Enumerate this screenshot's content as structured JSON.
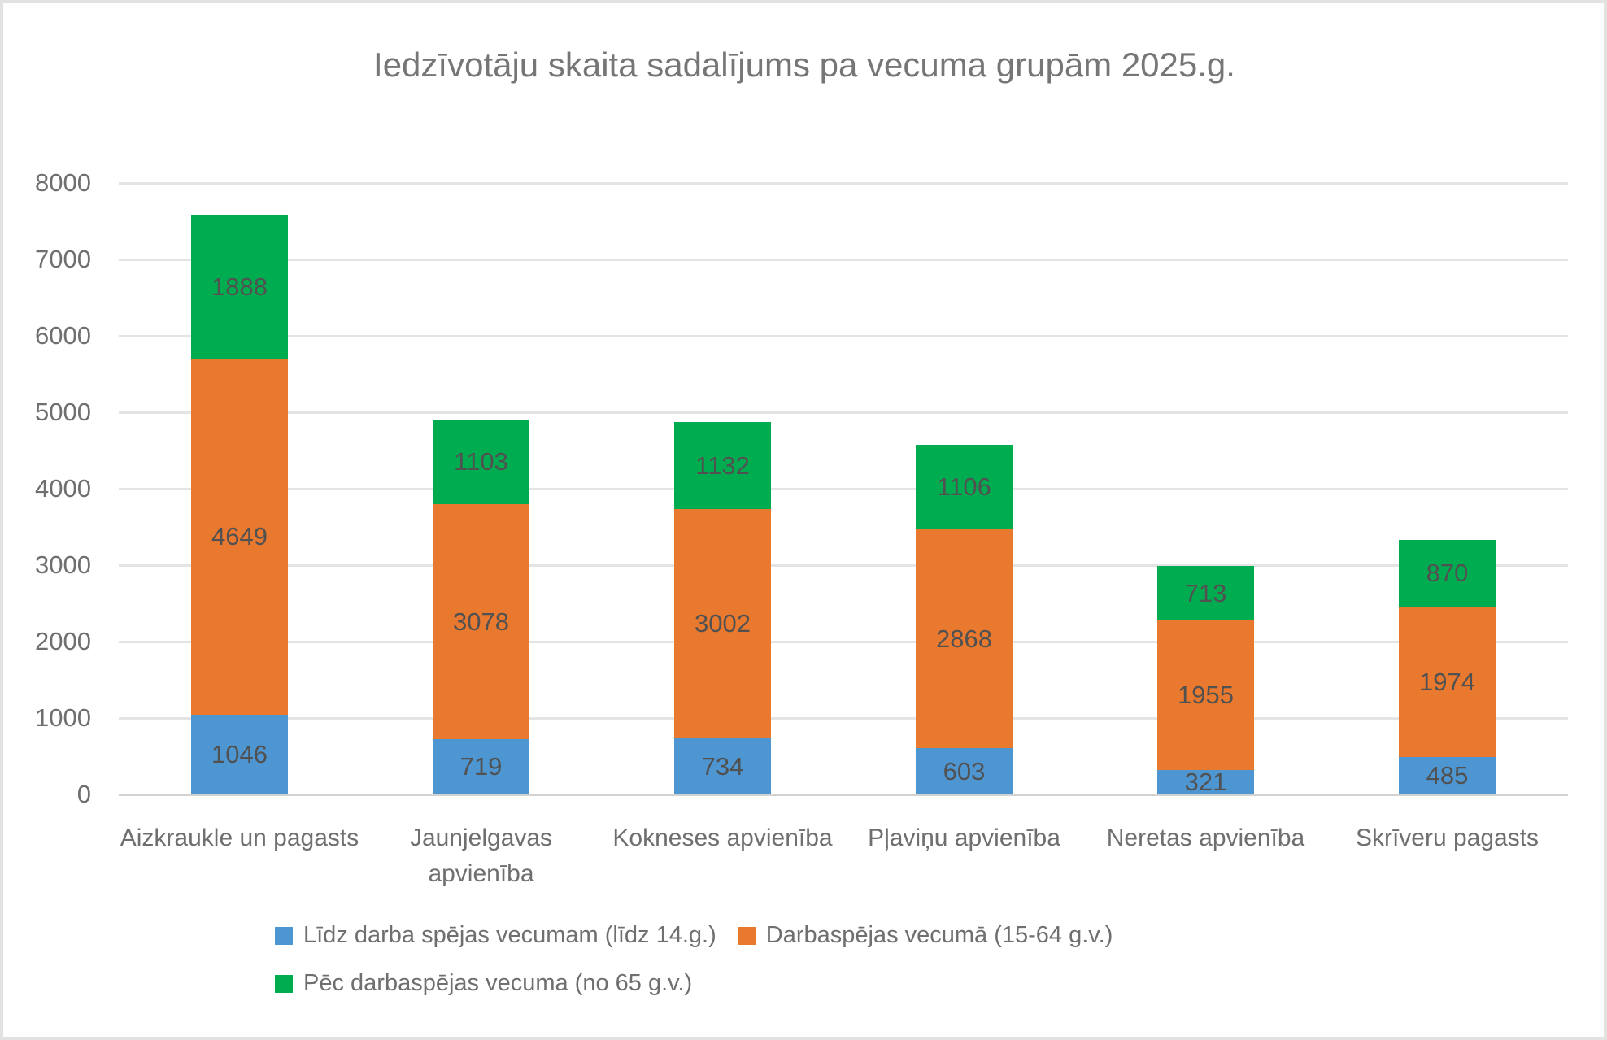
{
  "chart_data": {
    "type": "bar",
    "stacked": true,
    "title": "Iedzīvotāju skaita sadalījums pa vecuma grupām 2025.g.",
    "categories": [
      "Aizkraukle un pagasts",
      "Jaunjelgavas apvienība",
      "Kokneses apvienība",
      "Pļaviņu apvienība",
      "Neretas apvienība",
      "Skrīveru pagasts"
    ],
    "series": [
      {
        "name": "Līdz darba spējas vecumam (līdz 14.g.)",
        "color": "#4e96d2",
        "values": [
          1046,
          719,
          734,
          603,
          321,
          485
        ]
      },
      {
        "name": "Darbaspējas vecumā (15-64 g.v.)",
        "color": "#e8792e",
        "values": [
          4649,
          3078,
          3002,
          2868,
          1955,
          1974
        ]
      },
      {
        "name": "Pēc darbaspējas vecuma (no 65 g.v.)",
        "color": "#00ac50",
        "values": [
          1888,
          1103,
          1132,
          1106,
          713,
          870
        ]
      }
    ],
    "totals": [
      7583,
      4900,
      4868,
      4577,
      2989,
      3329
    ],
    "xlabel": "",
    "ylabel": "",
    "ylim": [
      0,
      8000
    ],
    "y_step": 1000,
    "y_tick_labels": [
      "0",
      "1000",
      "2000",
      "3000",
      "4000",
      "5000",
      "6000",
      "7000",
      "8000"
    ],
    "grid": true,
    "legend_position": "bottom",
    "data_labels": "center"
  },
  "colors": {
    "background": "#ffffff",
    "frame_border": "#e2e2e2",
    "gridline": "#e4e4e4",
    "axis_line": "#d2d2d2",
    "title_text": "#767676",
    "tick_text": "#6f6f6f",
    "value_label_text": "#515151",
    "legend_text": "#6f6f6f"
  }
}
